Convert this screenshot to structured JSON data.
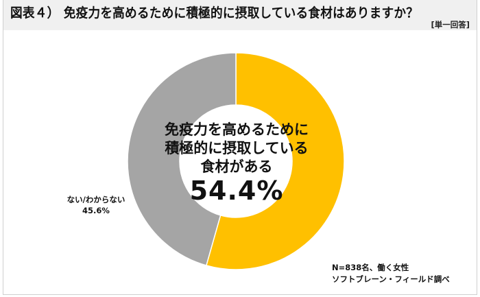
{
  "header": {
    "title": "図表４） 免疫力を高めるために積極的に摂取している食材はありますか？",
    "answer_type": "[単一回答]"
  },
  "center": {
    "lines": [
      "免疫力を高めるために",
      "積極的に摂取している",
      "食材がある"
    ],
    "value": "54.4%"
  },
  "outer_label": {
    "label": "ない/わからない",
    "value": "45.6%"
  },
  "note": {
    "line1": "N=838名、働く女性",
    "line2": "ソフトブレーン・フィールド調べ"
  },
  "colors": {
    "yes": "#FFC000",
    "no": "#A5A5A5",
    "header_bg": "#F0F0F0"
  },
  "chart_data": {
    "type": "pie",
    "variant": "donut",
    "title": "図表４） 免疫力を高めるために積極的に摂取している食材はありますか？",
    "subtitle": "[単一回答]",
    "categories": [
      "免疫力を高めるために積極的に摂取している食材がある",
      "ない/わからない"
    ],
    "values": [
      54.4,
      45.6
    ],
    "unit": "%",
    "colors": [
      "#FFC000",
      "#A5A5A5"
    ],
    "start_angle_deg": 0,
    "direction": "clockwise",
    "annotations": [
      "N=838名、働く女性",
      "ソフトブレーン・フィールド調べ"
    ],
    "legend": "none"
  }
}
